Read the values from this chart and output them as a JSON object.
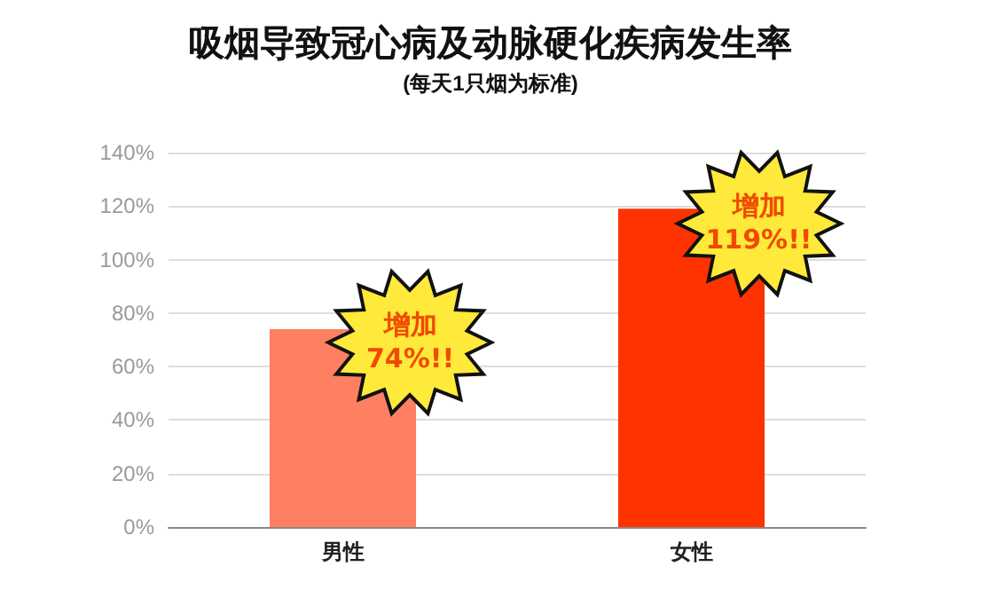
{
  "chart_data": {
    "type": "bar",
    "title": "吸烟导致冠心病及动脉硬化疾病发生率",
    "subtitle": "(每天1只烟为标准)",
    "categories": [
      "男性",
      "女性"
    ],
    "values": [
      74,
      119
    ],
    "colors": [
      "#ff8060",
      "#ff3300"
    ],
    "ylim": [
      0,
      140
    ],
    "yticks": [
      {
        "value": 0,
        "label": "0%"
      },
      {
        "value": 20,
        "label": "20%"
      },
      {
        "value": 40,
        "label": "40%"
      },
      {
        "value": 60,
        "label": "60%"
      },
      {
        "value": 80,
        "label": "80%"
      },
      {
        "value": 100,
        "label": "100%"
      },
      {
        "value": 120,
        "label": "120%"
      },
      {
        "value": 140,
        "label": "140%"
      }
    ],
    "grid": "y",
    "annotations": [
      {
        "text": "增加\n74%!!",
        "x": "男性",
        "y": 74
      },
      {
        "text": "增加\n119%!!",
        "x": "女性",
        "y": 119
      }
    ]
  }
}
